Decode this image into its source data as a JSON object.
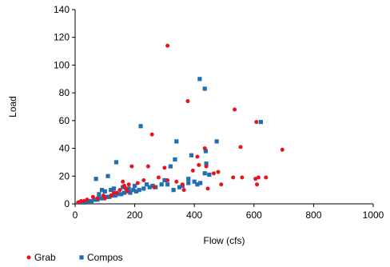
{
  "chart_data": {
    "type": "scatter",
    "title": "",
    "xlabel": "Flow (cfs)",
    "ylabel": "Load",
    "xlim": [
      0,
      1000
    ],
    "ylim": [
      0,
      140
    ],
    "xticks": [
      0,
      200,
      400,
      600,
      800,
      1000
    ],
    "yticks": [
      0,
      20,
      40,
      60,
      80,
      100,
      120,
      140
    ],
    "grid": false,
    "legend_position": "bottom-left",
    "series": [
      {
        "name": "Grab",
        "color": "#e8141c",
        "marker": "circle",
        "points": [
          [
            310,
            114
          ],
          [
            378,
            74
          ],
          [
            535,
            68
          ],
          [
            608,
            59
          ],
          [
            258,
            50
          ],
          [
            555,
            41
          ],
          [
            435,
            40
          ],
          [
            695,
            39
          ],
          [
            410,
            34
          ],
          [
            190,
            27
          ],
          [
            245,
            27
          ],
          [
            300,
            26
          ],
          [
            415,
            28
          ],
          [
            440,
            27
          ],
          [
            465,
            22
          ],
          [
            480,
            23
          ],
          [
            395,
            24
          ],
          [
            530,
            19
          ],
          [
            560,
            19
          ],
          [
            605,
            18
          ],
          [
            615,
            19
          ],
          [
            640,
            19
          ],
          [
            610,
            14
          ],
          [
            490,
            14
          ],
          [
            445,
            11
          ],
          [
            360,
            14
          ],
          [
            365,
            10
          ],
          [
            340,
            16
          ],
          [
            310,
            17
          ],
          [
            280,
            19
          ],
          [
            265,
            12
          ],
          [
            230,
            17
          ],
          [
            210,
            15
          ],
          [
            160,
            16
          ],
          [
            165,
            13
          ],
          [
            170,
            11
          ],
          [
            175,
            9
          ],
          [
            180,
            14
          ],
          [
            150,
            10
          ],
          [
            140,
            8
          ],
          [
            120,
            6
          ],
          [
            100,
            4
          ],
          [
            75,
            4
          ],
          [
            60,
            5
          ],
          [
            40,
            3
          ],
          [
            30,
            2
          ],
          [
            20,
            2
          ],
          [
            10,
            1
          ],
          [
            95,
            6
          ],
          [
            130,
            8
          ]
        ]
      },
      {
        "name": "Compos",
        "color": "#1f6fb4",
        "marker": "square",
        "points": [
          [
            418,
            90
          ],
          [
            435,
            83
          ],
          [
            623,
            59
          ],
          [
            220,
            56
          ],
          [
            475,
            45
          ],
          [
            340,
            45
          ],
          [
            438,
            38
          ],
          [
            390,
            35
          ],
          [
            335,
            32
          ],
          [
            138,
            30
          ],
          [
            440,
            29
          ],
          [
            320,
            27
          ],
          [
            435,
            22
          ],
          [
            450,
            21
          ],
          [
            380,
            18
          ],
          [
            300,
            17
          ],
          [
            290,
            14
          ],
          [
            270,
            12
          ],
          [
            250,
            12
          ],
          [
            230,
            11
          ],
          [
            215,
            10
          ],
          [
            205,
            9
          ],
          [
            195,
            10
          ],
          [
            185,
            8
          ],
          [
            175,
            9
          ],
          [
            165,
            8
          ],
          [
            155,
            7
          ],
          [
            145,
            7
          ],
          [
            135,
            6
          ],
          [
            125,
            6
          ],
          [
            115,
            5
          ],
          [
            105,
            5
          ],
          [
            95,
            4
          ],
          [
            85,
            4
          ],
          [
            75,
            3
          ],
          [
            65,
            3
          ],
          [
            55,
            2
          ],
          [
            45,
            2
          ],
          [
            35,
            1
          ],
          [
            25,
            1
          ],
          [
            15,
            1
          ],
          [
            70,
            18
          ],
          [
            110,
            20
          ],
          [
            80,
            7
          ],
          [
            90,
            10
          ],
          [
            100,
            9
          ],
          [
            120,
            10
          ],
          [
            130,
            11
          ],
          [
            160,
            12
          ],
          [
            180,
            11
          ],
          [
            200,
            13
          ],
          [
            240,
            14
          ],
          [
            260,
            13
          ],
          [
            310,
            14
          ],
          [
            350,
            12
          ],
          [
            380,
            15
          ],
          [
            400,
            16
          ],
          [
            410,
            14
          ],
          [
            420,
            15
          ],
          [
            330,
            10
          ],
          [
            360,
            13
          ]
        ]
      }
    ]
  }
}
